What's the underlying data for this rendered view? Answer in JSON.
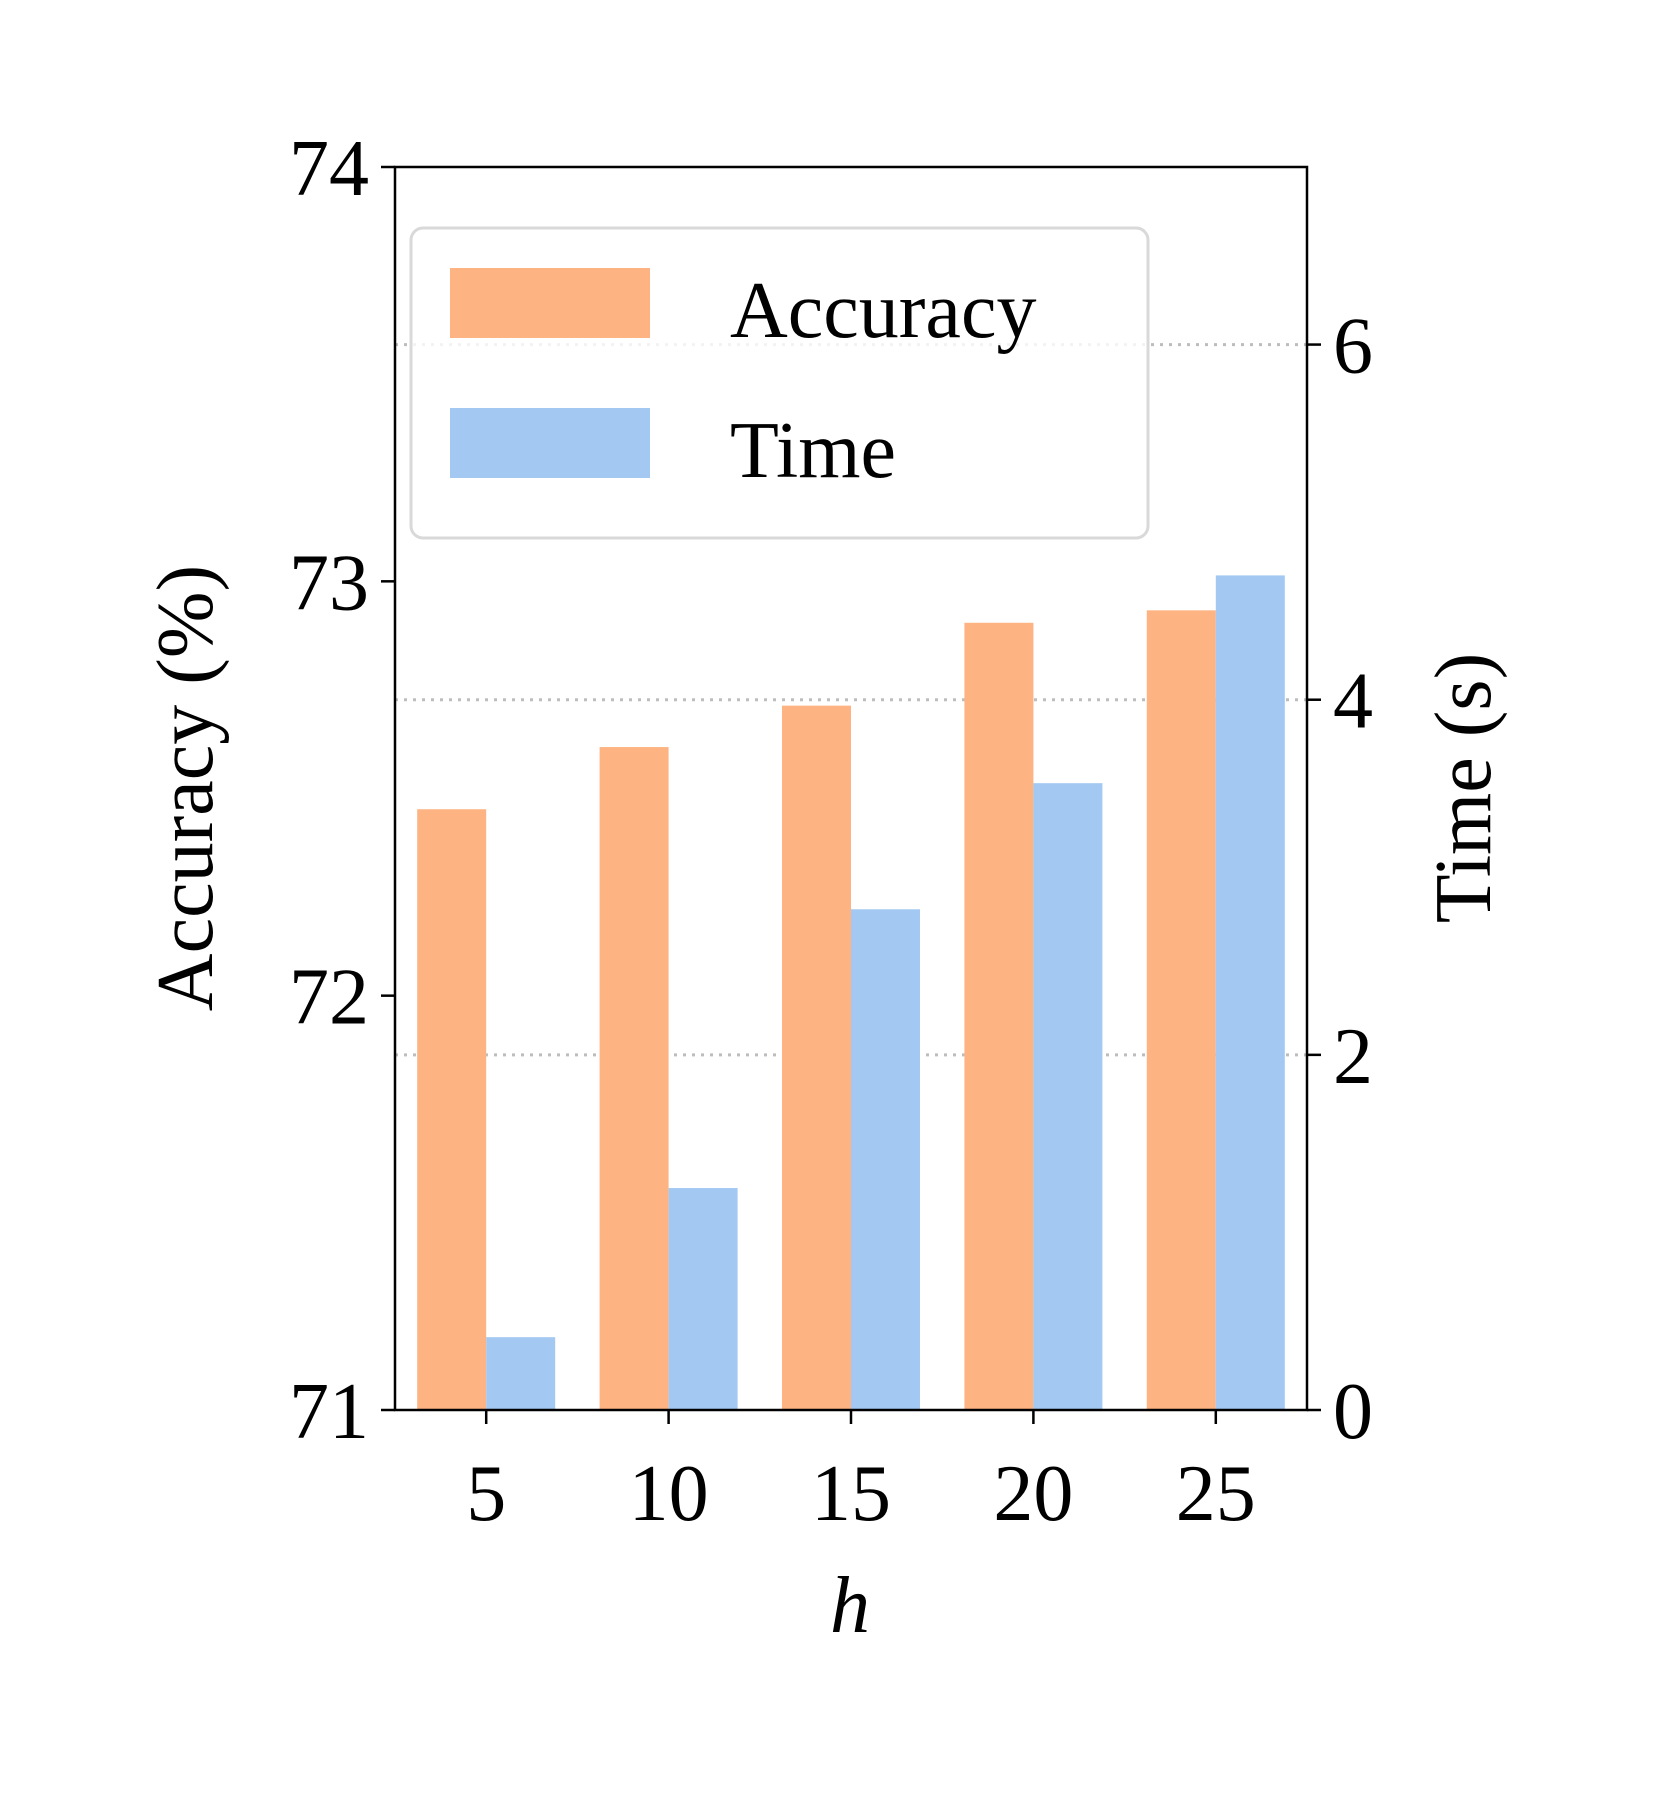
{
  "chart_data": {
    "type": "bar",
    "x_label": "h",
    "categories": [
      "5",
      "10",
      "15",
      "20",
      "25"
    ],
    "series": [
      {
        "name": "Accuracy",
        "axis": "left",
        "color": "#FDB482",
        "values": [
          72.45,
          72.6,
          72.7,
          72.9,
          72.93
        ]
      },
      {
        "name": "Time",
        "axis": "right",
        "color": "#A3C8F2",
        "values": [
          0.41,
          1.25,
          2.82,
          3.53,
          4.7
        ]
      }
    ],
    "left_axis": {
      "label": "Accuracy (%)",
      "ylim": [
        71,
        74
      ],
      "ticks": [
        "71",
        "72",
        "73",
        "74"
      ]
    },
    "right_axis": {
      "label": "Time (s)",
      "ylim": [
        0,
        7
      ],
      "ticks": [
        "0",
        "2",
        "4",
        "6"
      ]
    },
    "grid": "dotted horizontal lines at right-axis ticks",
    "legend": {
      "position": "upper-left",
      "entries": [
        "Accuracy",
        "Time"
      ]
    }
  }
}
